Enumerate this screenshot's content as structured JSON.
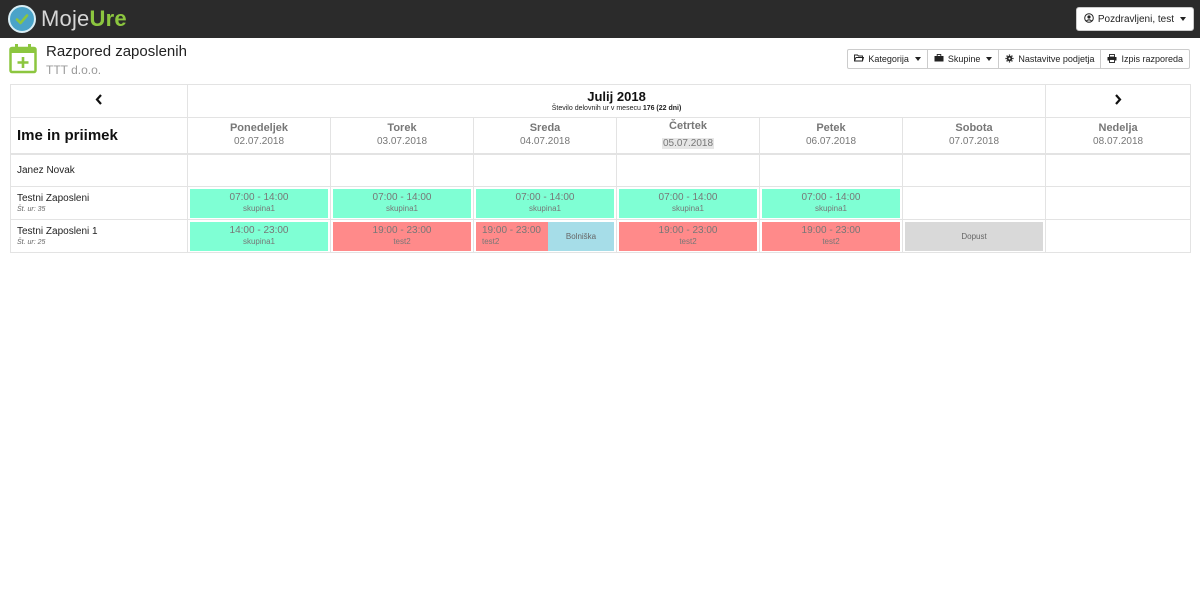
{
  "navbar": {
    "brand_prefix": "Moje",
    "brand_bold": "Ure",
    "user_label": "Pozdravljeni, test"
  },
  "header": {
    "title": "Razpored zaposlenih",
    "subtitle": "TTT d.o.o."
  },
  "toolbar": {
    "categories": "Kategorija",
    "groups": "Skupine",
    "settings": "Nastavitve podjetja",
    "print": "Izpis razporeda"
  },
  "calendar": {
    "month": "Julij 2018",
    "hours_prefix": "Število delovnih ur v mesecu",
    "hours_value": "176 (22 dni)",
    "name_header": "Ime in priimek",
    "days": [
      {
        "name": "Ponedeljek",
        "date": "02.07.2018"
      },
      {
        "name": "Torek",
        "date": "03.07.2018"
      },
      {
        "name": "Sreda",
        "date": "04.07.2018"
      },
      {
        "name": "Četrtek",
        "date": "05.07.2018"
      },
      {
        "name": "Petek",
        "date": "06.07.2018"
      },
      {
        "name": "Sobota",
        "date": "07.07.2018"
      },
      {
        "name": "Nedelja",
        "date": "08.07.2018"
      }
    ]
  },
  "employees": [
    {
      "name": "Janez Novak",
      "hours": ""
    },
    {
      "name": "Testni Zaposleni",
      "hours": "Št. ur: 35"
    },
    {
      "name": "Testni Zaposleni 1",
      "hours": "Št. ur: 25"
    }
  ],
  "shifts": {
    "row2": {
      "mon": {
        "time": "07:00 - 14:00",
        "group": "skupina1"
      },
      "tue": {
        "time": "07:00 - 14:00",
        "group": "skupina1"
      },
      "wed": {
        "time": "07:00 - 14:00",
        "group": "skupina1"
      },
      "thu": {
        "time": "07:00 - 14:00",
        "group": "skupina1"
      },
      "fri": {
        "time": "07:00 - 14:00",
        "group": "skupina1"
      }
    },
    "row3": {
      "mon": {
        "time": "14:00 - 23:00",
        "group": "skupina1"
      },
      "tue": {
        "time": "19:00 - 23:00",
        "group": "test2"
      },
      "wed": {
        "time": "19:00 - 23:00",
        "group": "test2",
        "absence": "Bolniška"
      },
      "thu": {
        "time": "19:00 - 23:00",
        "group": "test2"
      },
      "fri": {
        "time": "19:00 - 23:00",
        "group": "test2"
      },
      "sat": {
        "absence": "Dopust"
      }
    }
  },
  "colors": {
    "group1": "#7fffd4",
    "group2": "#ff8a8a",
    "sick": "#a6dde8",
    "vacation": "#d9d9d9",
    "brand_accent": "#8cc63f"
  }
}
